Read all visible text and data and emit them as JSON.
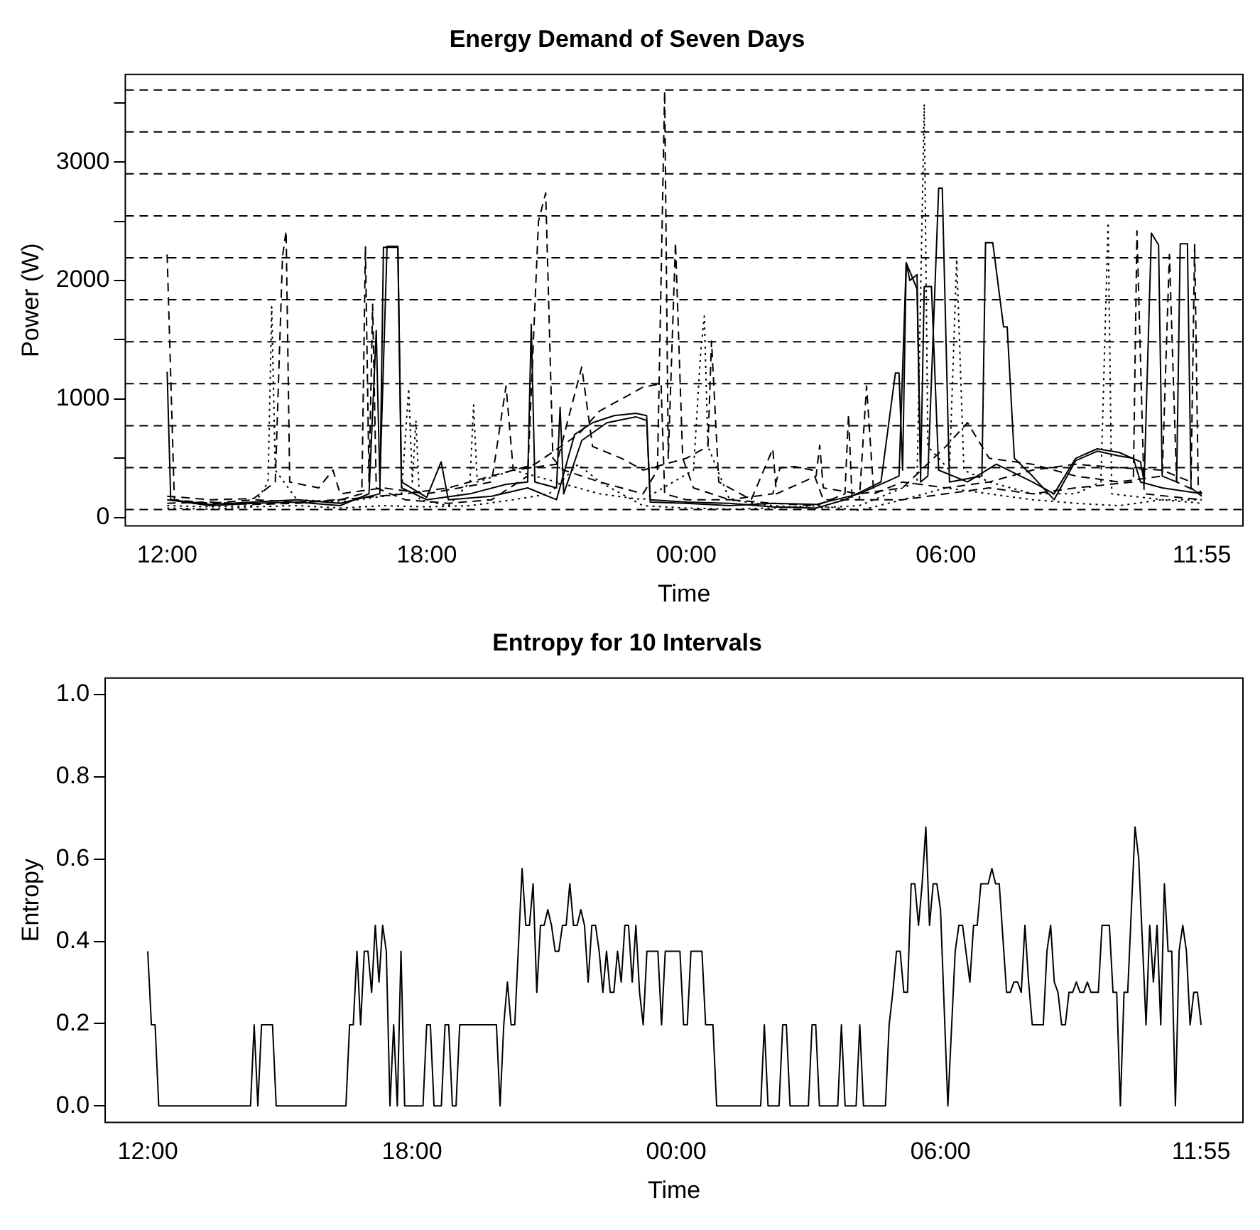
{
  "chart_data": [
    {
      "type": "line",
      "title": "Energy Demand of Seven Days",
      "xlabel": "Time",
      "ylabel": "Power (W)",
      "legend": false,
      "grid": false,
      "xlim": [
        "2000-01-01T11:02",
        "2000-01-02T12:52"
      ],
      "xticks": [
        {
          "value": "2000-01-01T12:00",
          "label": "12:00"
        },
        {
          "value": "2000-01-01T18:00",
          "label": "18:00"
        },
        {
          "value": "2000-01-02T00:00",
          "label": "00:00"
        },
        {
          "value": "2000-01-02T06:00",
          "label": "06:00"
        },
        {
          "value": "2000-01-02T11:55",
          "label": "11:55"
        }
      ],
      "ylim": [
        -70,
        3740
      ],
      "yticks": [
        0,
        {
          "value": 500,
          "label": null
        },
        1000,
        {
          "value": 1500,
          "label": null
        },
        2000,
        {
          "value": 2500,
          "label": null
        },
        3000,
        {
          "value": 3500,
          "label": null
        }
      ],
      "ref_lines": [
        {
          "axis": "y",
          "value": 67,
          "line_style": "dashed"
        },
        {
          "axis": "y",
          "value": 421,
          "line_style": "dashed"
        },
        {
          "axis": "y",
          "value": 775,
          "line_style": "dashed"
        },
        {
          "axis": "y",
          "value": 1130,
          "line_style": "dashed"
        },
        {
          "axis": "y",
          "value": 1484,
          "line_style": "dashed"
        },
        {
          "axis": "y",
          "value": 1838,
          "line_style": "dashed"
        },
        {
          "axis": "y",
          "value": 2192,
          "line_style": "dashed"
        },
        {
          "axis": "y",
          "value": 2546,
          "line_style": "dashed"
        },
        {
          "axis": "y",
          "value": 2901,
          "line_style": "dashed"
        },
        {
          "axis": "y",
          "value": 3255,
          "line_style": "dashed"
        },
        {
          "axis": "y",
          "value": 3609,
          "line_style": "dashed"
        }
      ],
      "series": [
        {
          "color": "#000000",
          "line_style": "solid",
          "x": [
            "2000-01-01T12:00",
            "2000-01-01T12:05",
            "2000-01-01T13:00",
            "2000-01-01T14:00",
            "2000-01-01T15:00",
            "2000-01-01T16:00",
            "2000-01-01T16:55",
            "2000-01-01T17:00",
            "2000-01-01T17:20",
            "2000-01-01T17:25",
            "2000-01-01T18:00",
            "2000-01-01T18:20",
            "2000-01-01T18:30",
            "2000-01-01T19:30",
            "2000-01-01T20:20",
            "2000-01-01T21:00",
            "2000-01-01T21:25",
            "2000-01-01T21:50",
            "2000-01-01T22:20",
            "2000-01-01T22:50",
            "2000-01-01T23:05",
            "2000-01-01T23:10",
            "2000-01-02T00:00",
            "2000-01-02T01:00",
            "2000-01-02T02:00",
            "2000-01-02T03:00",
            "2000-01-02T04:00",
            "2000-01-02T04:55",
            "2000-01-02T05:05",
            "2000-01-02T05:10",
            "2000-01-02T05:20",
            "2000-01-02T05:25",
            "2000-01-02T05:35",
            "2000-01-02T05:50",
            "2000-01-02T05:55",
            "2000-01-02T06:05",
            "2000-01-02T06:50",
            "2000-01-02T06:55",
            "2000-01-02T07:05",
            "2000-01-02T07:20",
            "2000-01-02T07:25",
            "2000-01-02T07:35",
            "2000-01-02T08:00",
            "2000-01-02T08:30",
            "2000-01-02T09:00",
            "2000-01-02T09:30",
            "2000-01-02T10:00",
            "2000-01-02T10:20",
            "2000-01-02T10:30",
            "2000-01-02T11:00",
            "2000-01-02T11:55"
          ],
          "values": [
            1230,
            150,
            110,
            130,
            150,
            120,
            200,
            2280,
            2280,
            300,
            170,
            470,
            150,
            180,
            250,
            150,
            700,
            800,
            860,
            880,
            860,
            130,
            120,
            100,
            120,
            110,
            200,
            350,
            2150,
            2000,
            2050,
            300,
            350,
            2780,
            2780,
            300,
            350,
            2320,
            2320,
            1610,
            1610,
            500,
            350,
            150,
            480,
            560,
            520,
            500,
            300,
            250,
            200
          ]
        },
        {
          "color": "#000000",
          "line_style": "solid",
          "x": [
            "2000-01-01T12:00",
            "2000-01-01T13:00",
            "2000-01-01T14:00",
            "2000-01-01T15:00",
            "2000-01-01T16:00",
            "2000-01-01T16:40",
            "2000-01-01T16:50",
            "2000-01-01T16:55",
            "2000-01-01T17:05",
            "2000-01-01T17:20",
            "2000-01-01T17:25",
            "2000-01-01T18:00",
            "2000-01-01T19:00",
            "2000-01-01T19:50",
            "2000-01-01T20:20",
            "2000-01-01T20:25",
            "2000-01-01T20:30",
            "2000-01-01T21:00",
            "2000-01-01T21:05",
            "2000-01-01T21:10",
            "2000-01-01T21:35",
            "2000-01-01T22:10",
            "2000-01-01T22:50",
            "2000-01-01T23:05",
            "2000-01-01T23:10",
            "2000-01-02T00:00",
            "2000-01-02T01:00",
            "2000-01-02T02:00",
            "2000-01-02T03:00",
            "2000-01-02T03:40",
            "2000-01-02T04:30",
            "2000-01-02T04:50",
            "2000-01-02T04:55",
            "2000-01-02T05:00",
            "2000-01-02T05:05",
            "2000-01-02T05:20",
            "2000-01-02T05:25",
            "2000-01-02T05:30",
            "2000-01-02T05:40",
            "2000-01-02T05:50",
            "2000-01-02T06:30",
            "2000-01-02T07:10",
            "2000-01-02T08:00",
            "2000-01-02T08:30",
            "2000-01-02T09:00",
            "2000-01-02T09:30",
            "2000-01-02T10:00",
            "2000-01-02T10:30",
            "2000-01-02T10:35",
            "2000-01-02T10:45",
            "2000-01-02T10:55",
            "2000-01-02T11:00",
            "2000-01-02T11:20",
            "2000-01-02T11:25",
            "2000-01-02T11:35",
            "2000-01-02T11:40",
            "2000-01-02T11:55"
          ],
          "values": [
            150,
            100,
            120,
            130,
            100,
            200,
            1580,
            300,
            2290,
            2290,
            250,
            150,
            200,
            280,
            300,
            1630,
            300,
            250,
            930,
            200,
            650,
            800,
            850,
            820,
            150,
            130,
            120,
            90,
            80,
            150,
            300,
            1220,
            1220,
            400,
            2150,
            1930,
            350,
            1950,
            1950,
            400,
            300,
            450,
            300,
            200,
            500,
            580,
            550,
            470,
            300,
            2400,
            2300,
            350,
            300,
            2310,
            2310,
            250,
            180
          ]
        },
        {
          "color": "#000000",
          "line_style": "dashed",
          "x": [
            "2000-01-01T12:00",
            "2000-01-01T12:10",
            "2000-01-01T13:00",
            "2000-01-01T14:00",
            "2000-01-01T15:00",
            "2000-01-01T16:00",
            "2000-01-01T16:30",
            "2000-01-01T16:35",
            "2000-01-01T16:40",
            "2000-01-01T16:45",
            "2000-01-01T16:50",
            "2000-01-01T17:30",
            "2000-01-01T18:30",
            "2000-01-01T19:30",
            "2000-01-01T20:20",
            "2000-01-01T20:35",
            "2000-01-01T20:45",
            "2000-01-01T20:55",
            "2000-01-01T21:10",
            "2000-01-01T22:00",
            "2000-01-01T23:00",
            "2000-01-01T23:20",
            "2000-01-01T23:30",
            "2000-01-01T23:35",
            "2000-01-01T23:45",
            "2000-01-01T23:55",
            "2000-01-02T00:10",
            "2000-01-02T01:00",
            "2000-01-02T02:00",
            "2000-01-02T03:00",
            "2000-01-02T03:40",
            "2000-01-02T03:45",
            "2000-01-02T03:50",
            "2000-01-02T05:00",
            "2000-01-02T06:00",
            "2000-01-02T07:00",
            "2000-01-02T08:00",
            "2000-01-02T09:00",
            "2000-01-02T10:20",
            "2000-01-02T10:25",
            "2000-01-02T10:35",
            "2000-01-02T11:55"
          ],
          "values": [
            2220,
            150,
            120,
            150,
            130,
            150,
            200,
            2290,
            300,
            1800,
            250,
            150,
            120,
            150,
            350,
            2500,
            2740,
            500,
            400,
            300,
            200,
            400,
            3600,
            500,
            2320,
            500,
            250,
            150,
            120,
            100,
            200,
            870,
            150,
            150,
            200,
            250,
            200,
            250,
            300,
            2420,
            200,
            150
          ]
        },
        {
          "color": "#000000",
          "line_style": "dotted",
          "x": [
            "2000-01-01T12:00",
            "2000-01-01T13:00",
            "2000-01-01T14:00",
            "2000-01-01T14:20",
            "2000-01-01T14:25",
            "2000-01-01T14:30",
            "2000-01-01T15:00",
            "2000-01-01T16:00",
            "2000-01-01T17:25",
            "2000-01-01T17:35",
            "2000-01-01T17:40",
            "2000-01-01T17:45",
            "2000-01-01T17:50",
            "2000-01-01T18:30",
            "2000-01-01T19:00",
            "2000-01-01T19:05",
            "2000-01-01T19:10",
            "2000-01-01T20:00",
            "2000-01-01T21:00",
            "2000-01-01T22:00",
            "2000-01-01T23:00",
            "2000-01-02T00:10",
            "2000-01-02T00:20",
            "2000-01-02T00:25",
            "2000-01-02T00:30",
            "2000-01-02T01:00",
            "2000-01-02T02:00",
            "2000-01-02T03:00",
            "2000-01-02T04:00",
            "2000-01-02T05:20",
            "2000-01-02T05:30",
            "2000-01-02T05:35",
            "2000-01-02T06:05",
            "2000-01-02T06:15",
            "2000-01-02T06:25",
            "2000-01-02T07:00",
            "2000-01-02T08:00",
            "2000-01-02T09:00",
            "2000-01-02T09:35",
            "2000-01-02T09:45",
            "2000-01-02T09:50",
            "2000-01-02T11:00",
            "2000-01-02T11:55"
          ],
          "values": [
            100,
            90,
            100,
            300,
            1780,
            400,
            150,
            130,
            200,
            1090,
            300,
            820,
            150,
            100,
            300,
            950,
            300,
            400,
            300,
            200,
            150,
            400,
            1400,
            1700,
            600,
            150,
            100,
            80,
            100,
            300,
            3490,
            600,
            400,
            2180,
            400,
            300,
            200,
            200,
            300,
            2490,
            200,
            150,
            150
          ]
        },
        {
          "color": "#000000",
          "line_style": "dashed",
          "x": [
            "2000-01-01T12:00",
            "2000-01-01T13:00",
            "2000-01-01T14:00",
            "2000-01-01T14:30",
            "2000-01-01T14:40",
            "2000-01-01T14:45",
            "2000-01-01T14:50",
            "2000-01-01T15:30",
            "2000-01-01T15:50",
            "2000-01-01T16:00",
            "2000-01-01T17:00",
            "2000-01-01T18:00",
            "2000-01-01T19:30",
            "2000-01-01T19:50",
            "2000-01-01T20:00",
            "2000-01-01T21:00",
            "2000-01-01T21:35",
            "2000-01-01T21:50",
            "2000-01-01T22:30",
            "2000-01-01T23:00",
            "2000-01-02T00:00",
            "2000-01-02T00:30",
            "2000-01-02T00:35",
            "2000-01-02T00:45",
            "2000-01-02T01:30",
            "2000-01-02T02:00",
            "2000-01-02T02:05",
            "2000-01-02T03:00",
            "2000-01-02T03:05",
            "2000-01-02T03:10",
            "2000-01-02T04:00",
            "2000-01-02T05:00",
            "2000-01-02T06:00",
            "2000-01-02T06:30",
            "2000-01-02T07:00",
            "2000-01-02T08:00",
            "2000-01-02T09:00",
            "2000-01-02T10:00",
            "2000-01-02T11:00",
            "2000-01-02T11:10",
            "2000-01-02T11:20",
            "2000-01-02T11:55"
          ],
          "values": [
            180,
            150,
            160,
            300,
            2200,
            2420,
            300,
            250,
            400,
            200,
            250,
            200,
            300,
            1110,
            400,
            450,
            1270,
            600,
            500,
            400,
            500,
            600,
            1490,
            300,
            150,
            580,
            200,
            350,
            610,
            250,
            200,
            250,
            600,
            800,
            500,
            450,
            350,
            300,
            350,
            2220,
            300,
            200
          ]
        },
        {
          "color": "#000000",
          "line_style": "dashed",
          "x": [
            "2000-01-01T12:00",
            "2000-01-01T13:00",
            "2000-01-01T14:00",
            "2000-01-01T15:00",
            "2000-01-01T16:00",
            "2000-01-01T17:30",
            "2000-01-01T18:30",
            "2000-01-01T19:30",
            "2000-01-01T20:30",
            "2000-01-01T21:30",
            "2000-01-01T22:00",
            "2000-01-01T22:30",
            "2000-01-01T23:00",
            "2000-01-01T23:25",
            "2000-01-01T23:30",
            "2000-01-02T00:00",
            "2000-01-02T01:00",
            "2000-01-02T02:00",
            "2000-01-02T02:10",
            "2000-01-02T02:30",
            "2000-01-02T02:55",
            "2000-01-02T03:10",
            "2000-01-02T04:00",
            "2000-01-02T04:10",
            "2000-01-02T04:20",
            "2000-01-02T05:00",
            "2000-01-02T06:00",
            "2000-01-02T07:00",
            "2000-01-02T08:00",
            "2000-01-02T09:00",
            "2000-01-02T10:00",
            "2000-01-02T11:00",
            "2000-01-02T11:40",
            "2000-01-02T11:45",
            "2000-01-02T11:50",
            "2000-01-02T11:55"
          ],
          "values": [
            120,
            130,
            110,
            120,
            150,
            200,
            250,
            350,
            450,
            700,
            900,
            1000,
            1100,
            1130,
            200,
            150,
            150,
            200,
            420,
            430,
            400,
            150,
            150,
            1110,
            200,
            300,
            250,
            300,
            400,
            450,
            420,
            400,
            300,
            2310,
            250,
            200
          ]
        },
        {
          "color": "#000000",
          "line_style": "dotted",
          "x": [
            "2000-01-01T12:00",
            "2000-01-01T13:00",
            "2000-01-01T14:00",
            "2000-01-01T15:00",
            "2000-01-01T16:00",
            "2000-01-01T17:00",
            "2000-01-01T18:00",
            "2000-01-01T19:00",
            "2000-01-01T20:00",
            "2000-01-01T20:50",
            "2000-01-01T21:30",
            "2000-01-01T22:00",
            "2000-01-01T23:00",
            "2000-01-02T00:00",
            "2000-01-02T01:00",
            "2000-01-02T02:00",
            "2000-01-02T03:00",
            "2000-01-02T04:00",
            "2000-01-02T05:00",
            "2000-01-02T06:00",
            "2000-01-02T07:00",
            "2000-01-02T08:00",
            "2000-01-02T09:00",
            "2000-01-02T10:00",
            "2000-01-02T11:00",
            "2000-01-02T11:55"
          ],
          "values": [
            80,
            70,
            90,
            100,
            80,
            100,
            90,
            100,
            150,
            200,
            450,
            300,
            100,
            80,
            70,
            80,
            100,
            60,
            150,
            250,
            200,
            150,
            120,
            100,
            150,
            120
          ]
        }
      ]
    },
    {
      "type": "line",
      "title": "Entropy for 10 Intervals",
      "xlabel": "Time",
      "ylabel": "Entropy",
      "legend": false,
      "grid": false,
      "xlim": [
        "2000-01-01T11:02",
        "2000-01-02T12:52"
      ],
      "xticks": [
        {
          "value": "2000-01-01T12:00",
          "label": "12:00"
        },
        {
          "value": "2000-01-01T18:00",
          "label": "18:00"
        },
        {
          "value": "2000-01-02T00:00",
          "label": "00:00"
        },
        {
          "value": "2000-01-02T06:00",
          "label": "06:00"
        },
        {
          "value": "2000-01-02T11:55",
          "label": "11:55"
        }
      ],
      "ylim": [
        -0.04,
        1.04
      ],
      "yticks": [
        {
          "value": 0,
          "label": "0.0"
        },
        0.2,
        0.4,
        0.6,
        0.8,
        {
          "value": 1,
          "label": "1.0"
        }
      ],
      "series": [
        {
          "color": "#000000",
          "line_style": "solid",
          "x": [
            "2000-01-01T12:00",
            "2000-01-01T12:05",
            "2000-01-01T12:10",
            "2000-01-01T12:15",
            "2000-01-01T14:20",
            "2000-01-01T14:25",
            "2000-01-01T14:30",
            "2000-01-01T14:35",
            "2000-01-01T14:50",
            "2000-01-01T14:55",
            "2000-01-01T16:30",
            "2000-01-01T16:35",
            "2000-01-01T16:40",
            "2000-01-01T16:45",
            "2000-01-01T16:50",
            "2000-01-01T16:55",
            "2000-01-01T17:00",
            "2000-01-01T17:05",
            "2000-01-01T17:10",
            "2000-01-01T17:15",
            "2000-01-01T17:20",
            "2000-01-01T17:25",
            "2000-01-01T17:30",
            "2000-01-01T17:35",
            "2000-01-01T17:40",
            "2000-01-01T17:45",
            "2000-01-01T17:50",
            "2000-01-01T18:15",
            "2000-01-01T18:20",
            "2000-01-01T18:25",
            "2000-01-01T18:30",
            "2000-01-01T18:40",
            "2000-01-01T18:45",
            "2000-01-01T18:50",
            "2000-01-01T18:55",
            "2000-01-01T19:00",
            "2000-01-01T19:05",
            "2000-01-01T19:55",
            "2000-01-01T20:00",
            "2000-01-01T20:05",
            "2000-01-01T20:10",
            "2000-01-01T20:15",
            "2000-01-01T20:20",
            "2000-01-01T20:30",
            "2000-01-01T20:35",
            "2000-01-01T20:40",
            "2000-01-01T20:45",
            "2000-01-01T20:50",
            "2000-01-01T20:55",
            "2000-01-01T21:00",
            "2000-01-01T21:05",
            "2000-01-01T21:10",
            "2000-01-01T21:15",
            "2000-01-01T21:20",
            "2000-01-01T21:25",
            "2000-01-01T21:30",
            "2000-01-01T21:35",
            "2000-01-01T21:40",
            "2000-01-01T21:45",
            "2000-01-01T21:50",
            "2000-01-01T21:55",
            "2000-01-01T22:00",
            "2000-01-01T22:05",
            "2000-01-01T22:10",
            "2000-01-01T22:15",
            "2000-01-01T22:20",
            "2000-01-01T22:25",
            "2000-01-01T22:30",
            "2000-01-01T22:35",
            "2000-01-01T22:40",
            "2000-01-01T22:45",
            "2000-01-01T22:50",
            "2000-01-01T22:55",
            "2000-01-01T23:00",
            "2000-01-01T23:05",
            "2000-01-01T23:10",
            "2000-01-01T23:15",
            "2000-01-01T23:20",
            "2000-01-01T23:35",
            "2000-01-01T23:40",
            "2000-01-01T23:45",
            "2000-01-02T00:05",
            "2000-01-02T00:10",
            "2000-01-02T00:15",
            "2000-01-02T00:20",
            "2000-01-02T00:35",
            "2000-01-02T00:40",
            "2000-01-02T00:50",
            "2000-01-02T00:55",
            "2000-01-02T01:55",
            "2000-01-02T02:00",
            "2000-01-02T02:05",
            "2000-01-02T02:20",
            "2000-01-02T02:25",
            "2000-01-02T02:30",
            "2000-01-02T02:35",
            "2000-01-02T03:00",
            "2000-01-02T03:05",
            "2000-01-02T03:10",
            "2000-01-02T03:15",
            "2000-01-02T03:40",
            "2000-01-02T03:45",
            "2000-01-02T03:50",
            "2000-01-02T04:05",
            "2000-01-02T04:10",
            "2000-01-02T04:15",
            "2000-01-02T04:45",
            "2000-01-02T04:50",
            "2000-01-02T04:55",
            "2000-01-02T05:00",
            "2000-01-02T05:05",
            "2000-01-02T05:10",
            "2000-01-02T05:15",
            "2000-01-02T05:20",
            "2000-01-02T05:25",
            "2000-01-02T05:30",
            "2000-01-02T05:35",
            "2000-01-02T05:40",
            "2000-01-02T05:45",
            "2000-01-02T05:50",
            "2000-01-02T05:55",
            "2000-01-02T06:00",
            "2000-01-02T06:10",
            "2000-01-02T06:20",
            "2000-01-02T06:25",
            "2000-01-02T06:30",
            "2000-01-02T06:40",
            "2000-01-02T06:45",
            "2000-01-02T06:50",
            "2000-01-02T06:55",
            "2000-01-02T07:05",
            "2000-01-02T07:10",
            "2000-01-02T07:15",
            "2000-01-02T07:20",
            "2000-01-02T07:30",
            "2000-01-02T07:35",
            "2000-01-02T07:40",
            "2000-01-02T07:45",
            "2000-01-02T07:50",
            "2000-01-02T07:55",
            "2000-01-02T08:00",
            "2000-01-02T08:05",
            "2000-01-02T08:20",
            "2000-01-02T08:25",
            "2000-01-02T08:30",
            "2000-01-02T08:35",
            "2000-01-02T08:40",
            "2000-01-02T08:45",
            "2000-01-02T08:50",
            "2000-01-02T08:55",
            "2000-01-02T09:00",
            "2000-01-02T09:05",
            "2000-01-02T09:10",
            "2000-01-02T09:15",
            "2000-01-02T09:20",
            "2000-01-02T09:25",
            "2000-01-02T09:35",
            "2000-01-02T09:40",
            "2000-01-02T09:50",
            "2000-01-02T09:55",
            "2000-01-02T10:00",
            "2000-01-02T10:05",
            "2000-01-02T10:10",
            "2000-01-02T10:15",
            "2000-01-02T10:25",
            "2000-01-02T10:30",
            "2000-01-02T10:40",
            "2000-01-02T10:45",
            "2000-01-02T10:50",
            "2000-01-02T10:55",
            "2000-01-02T11:00",
            "2000-01-02T11:05",
            "2000-01-02T11:10",
            "2000-01-02T11:15",
            "2000-01-02T11:20",
            "2000-01-02T11:25",
            "2000-01-02T11:30",
            "2000-01-02T11:35",
            "2000-01-02T11:40",
            "2000-01-02T11:45",
            "2000-01-02T11:50",
            "2000-01-02T11:55"
          ],
          "values": [
            0.376,
            0.197,
            0.197,
            0,
            0,
            0.197,
            0,
            0.197,
            0.197,
            0,
            0,
            0.197,
            0.197,
            0.376,
            0.197,
            0.376,
            0.376,
            0.276,
            0.439,
            0.301,
            0.439,
            0.376,
            0,
            0.197,
            0,
            0.376,
            0,
            0,
            0.197,
            0.197,
            0,
            0,
            0.197,
            0.197,
            0,
            0,
            0.197,
            0.197,
            0,
            0.197,
            0.301,
            0.197,
            0.197,
            0.577,
            0.439,
            0.439,
            0.54,
            0.276,
            0.439,
            0.439,
            0.477,
            0.439,
            0.376,
            0.376,
            0.439,
            0.439,
            0.54,
            0.439,
            0.439,
            0.477,
            0.439,
            0.301,
            0.439,
            0.439,
            0.376,
            0.276,
            0.376,
            0.276,
            0.276,
            0.376,
            0.301,
            0.439,
            0.439,
            0.301,
            0.439,
            0.276,
            0.197,
            0.376,
            0.376,
            0.197,
            0.376,
            0.376,
            0.197,
            0.197,
            0.376,
            0.376,
            0.197,
            0.197,
            0,
            0,
            0.197,
            0,
            0,
            0.197,
            0.197,
            0,
            0,
            0.197,
            0.197,
            0,
            0,
            0.197,
            0,
            0,
            0.197,
            0,
            0,
            0.197,
            0.276,
            0.376,
            0.376,
            0.276,
            0.276,
            0.54,
            0.54,
            0.439,
            0.54,
            0.678,
            0.439,
            0.54,
            0.54,
            0.477,
            0,
            0.376,
            0.439,
            0.439,
            0.301,
            0.439,
            0.439,
            0.54,
            0.54,
            0.577,
            0.54,
            0.54,
            0.276,
            0.276,
            0.301,
            0.301,
            0.276,
            0.439,
            0.301,
            0.197,
            0.197,
            0.376,
            0.439,
            0.301,
            0.276,
            0.197,
            0.197,
            0.276,
            0.276,
            0.301,
            0.276,
            0.276,
            0.301,
            0.276,
            0.276,
            0.439,
            0.439,
            0.276,
            0.276,
            0,
            0.276,
            0.276,
            0.678,
            0.602,
            0.197,
            0.439,
            0.301,
            0.439,
            0.197,
            0.54,
            0.376,
            0.376,
            0,
            0.376,
            0.439,
            0.376,
            0.197,
            0.276,
            0.276,
            0.197
          ]
        }
      ]
    }
  ]
}
